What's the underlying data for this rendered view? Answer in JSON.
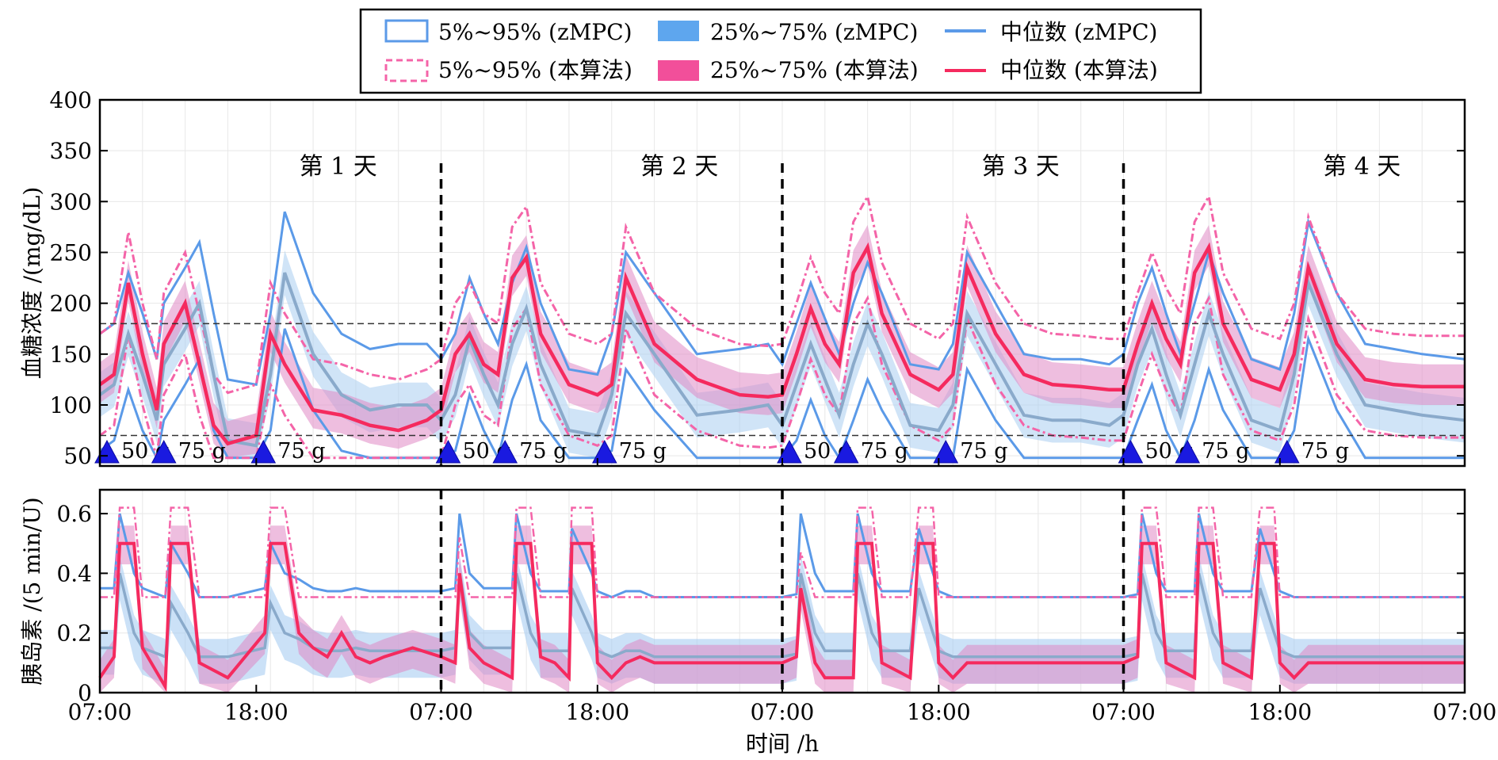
{
  "legend": {
    "items": [
      {
        "label": "5%~95% (zMPC)",
        "kind": "outline-band",
        "color": "#5b9ae8"
      },
      {
        "label": "25%~75% (zMPC)",
        "kind": "filled-band",
        "color": "#5ea6ee"
      },
      {
        "label": "中位数 (zMPC)",
        "kind": "line",
        "color": "#5b9ae8"
      },
      {
        "label": "5%~95% (本算法)",
        "kind": "dashed-band",
        "color": "#f464a8"
      },
      {
        "label": "25%~75% (本算法)",
        "kind": "filled-band",
        "color": "#f24f9a"
      },
      {
        "label": "中位数 (本算法)",
        "kind": "line",
        "color": "#f52a5e"
      }
    ]
  },
  "colors": {
    "zmpc": "#5b9ae8",
    "zmpc_band": "#a9cdf1",
    "zmpc_median": "#8aaacb",
    "alg": "#f52a5e",
    "alg_band": "#e089c4",
    "alg_dashed": "#f464a8",
    "meal_marker": "#1a1ae0"
  },
  "chart_data": [
    {
      "type": "line",
      "ylabel": "血糖浓度 /(mg/dL)",
      "xlabel": "",
      "ylim": [
        40,
        400
      ],
      "yticks": [
        "50",
        "100",
        "150",
        "200",
        "250",
        "300",
        "350",
        "400"
      ],
      "ytick_values": [
        50,
        100,
        150,
        200,
        250,
        300,
        350,
        400
      ],
      "xlim": [
        0,
        96
      ],
      "grid": true,
      "reference_lines": [
        180,
        70
      ],
      "day_dividers": [
        24,
        48,
        72
      ],
      "day_labels": [
        {
          "text": "第 1 天",
          "x": 19.5
        },
        {
          "text": "第 2 天",
          "x": 43.5
        },
        {
          "text": "第 3 天",
          "x": 67.5
        },
        {
          "text": "第 4 天",
          "x": 91.5
        }
      ],
      "meals": [
        {
          "x": 0.5,
          "label": "50 g"
        },
        {
          "x": 4.5,
          "label": "75 g"
        },
        {
          "x": 11.5,
          "label": "75 g"
        },
        {
          "x": 24.5,
          "label": "50 g"
        },
        {
          "x": 28.5,
          "label": "75 g"
        },
        {
          "x": 35.5,
          "label": "75 g"
        },
        {
          "x": 48.5,
          "label": "50 g"
        },
        {
          "x": 52.5,
          "label": "75 g"
        },
        {
          "x": 59.5,
          "label": "75 g"
        },
        {
          "x": 72.5,
          "label": "50 g"
        },
        {
          "x": 76.5,
          "label": "75 g"
        },
        {
          "x": 83.5,
          "label": "75 g"
        }
      ],
      "x": [
        0,
        1,
        2,
        3,
        4,
        4.5,
        6,
        7,
        8,
        9,
        11,
        12,
        13,
        15,
        17,
        19,
        21,
        23,
        24,
        25,
        26,
        27,
        28,
        29,
        30,
        31,
        33,
        35,
        36,
        37,
        39,
        42,
        45,
        47,
        48,
        49,
        50,
        51,
        52,
        53,
        54,
        55,
        57,
        59,
        60,
        61,
        63,
        65,
        67,
        69,
        71,
        72,
        73,
        74,
        75,
        76,
        77,
        78,
        79,
        81,
        83,
        84,
        85,
        87,
        89,
        91,
        93,
        96
      ],
      "series": [
        {
          "name": "中位数 (本算法)",
          "values": [
            120,
            130,
            220,
            150,
            95,
            160,
            200,
            140,
            80,
            62,
            70,
            170,
            140,
            95,
            90,
            80,
            75,
            85,
            95,
            150,
            170,
            140,
            130,
            225,
            245,
            170,
            120,
            110,
            120,
            225,
            160,
            125,
            110,
            108,
            110,
            150,
            195,
            160,
            140,
            230,
            255,
            190,
            130,
            115,
            130,
            235,
            170,
            130,
            120,
            118,
            115,
            115,
            160,
            200,
            165,
            140,
            230,
            255,
            180,
            125,
            115,
            150,
            235,
            160,
            125,
            120,
            118,
            118
          ]
        },
        {
          "name": "中位数 (zMPC)",
          "values": [
            110,
            120,
            170,
            130,
            85,
            140,
            175,
            200,
            130,
            65,
            60,
            130,
            230,
            150,
            110,
            95,
            100,
            100,
            85,
            110,
            165,
            130,
            100,
            160,
            195,
            140,
            75,
            70,
            110,
            190,
            150,
            90,
            95,
            100,
            80,
            120,
            160,
            125,
            90,
            140,
            180,
            150,
            80,
            75,
            100,
            190,
            140,
            90,
            85,
            85,
            80,
            90,
            140,
            175,
            130,
            90,
            140,
            190,
            150,
            85,
            75,
            130,
            220,
            150,
            100,
            95,
            90,
            85
          ]
        }
      ]
    },
    {
      "type": "line",
      "ylabel": "胰岛素 /(5 min/U)",
      "xlabel": "时间 /h",
      "ylim": [
        0,
        0.68
      ],
      "yticks": [
        "0",
        "0.2",
        "0.4",
        "0.6"
      ],
      "ytick_values": [
        0,
        0.2,
        0.4,
        0.6
      ],
      "xlim": [
        0,
        96
      ],
      "xticks": [
        "07:00",
        "18:00",
        "07:00",
        "18:00",
        "07:00",
        "18:00",
        "07:00",
        "18:00",
        "07:00"
      ],
      "xtick_values": [
        0,
        11,
        24,
        35,
        48,
        59,
        72,
        83,
        96
      ],
      "grid": true,
      "day_dividers": [
        24,
        48,
        72
      ],
      "x": [
        0,
        1,
        1.4,
        2.4,
        3,
        4.6,
        5,
        6.2,
        7,
        9,
        11.6,
        12,
        13,
        14,
        15,
        16,
        17,
        18,
        19,
        20,
        22,
        24,
        25,
        25.3,
        26,
        27,
        29,
        29.3,
        30.3,
        31,
        32,
        33,
        33.2,
        34.6,
        35,
        36,
        37,
        38,
        39,
        40,
        42,
        44,
        46,
        48,
        49,
        49.3,
        50.3,
        51,
        53,
        53.3,
        54.3,
        55,
        57,
        57.6,
        58.6,
        59,
        60,
        61,
        63,
        65,
        68,
        70,
        72,
        73,
        73.3,
        74.3,
        75,
        77,
        77.3,
        78.3,
        79,
        81,
        81.6,
        82.6,
        83,
        84,
        85,
        87,
        89,
        91,
        93,
        96
      ],
      "series": [
        {
          "name": "中位数 (本算法)",
          "values": [
            0.05,
            0.12,
            0.5,
            0.5,
            0.15,
            0.02,
            0.5,
            0.5,
            0.1,
            0.05,
            0.2,
            0.5,
            0.5,
            0.2,
            0.15,
            0.12,
            0.2,
            0.12,
            0.1,
            0.12,
            0.15,
            0.12,
            0.1,
            0.4,
            0.15,
            0.1,
            0.05,
            0.5,
            0.5,
            0.12,
            0.1,
            0.05,
            0.5,
            0.5,
            0.1,
            0.05,
            0.1,
            0.12,
            0.1,
            0.1,
            0.1,
            0.1,
            0.1,
            0.1,
            0.12,
            0.35,
            0.1,
            0.05,
            0.05,
            0.5,
            0.5,
            0.1,
            0.05,
            0.5,
            0.5,
            0.1,
            0.05,
            0.1,
            0.1,
            0.1,
            0.1,
            0.1,
            0.1,
            0.12,
            0.5,
            0.5,
            0.1,
            0.05,
            0.5,
            0.5,
            0.1,
            0.05,
            0.5,
            0.5,
            0.1,
            0.05,
            0.1,
            0.1,
            0.1,
            0.1,
            0.1,
            0.1
          ]
        },
        {
          "name": "中位数 (zMPC)",
          "values": [
            0.15,
            0.15,
            0.4,
            0.2,
            0.15,
            0.12,
            0.3,
            0.2,
            0.12,
            0.12,
            0.15,
            0.3,
            0.2,
            0.18,
            0.15,
            0.14,
            0.14,
            0.15,
            0.14,
            0.14,
            0.14,
            0.14,
            0.15,
            0.4,
            0.2,
            0.15,
            0.15,
            0.4,
            0.2,
            0.14,
            0.14,
            0.14,
            0.35,
            0.2,
            0.14,
            0.12,
            0.14,
            0.14,
            0.12,
            0.12,
            0.12,
            0.12,
            0.12,
            0.12,
            0.13,
            0.4,
            0.2,
            0.14,
            0.14,
            0.4,
            0.2,
            0.14,
            0.14,
            0.35,
            0.2,
            0.14,
            0.12,
            0.12,
            0.12,
            0.12,
            0.12,
            0.12,
            0.12,
            0.13,
            0.4,
            0.2,
            0.14,
            0.14,
            0.4,
            0.2,
            0.14,
            0.14,
            0.35,
            0.2,
            0.14,
            0.12,
            0.12,
            0.12,
            0.12,
            0.12,
            0.12,
            0.12
          ]
        }
      ]
    }
  ]
}
